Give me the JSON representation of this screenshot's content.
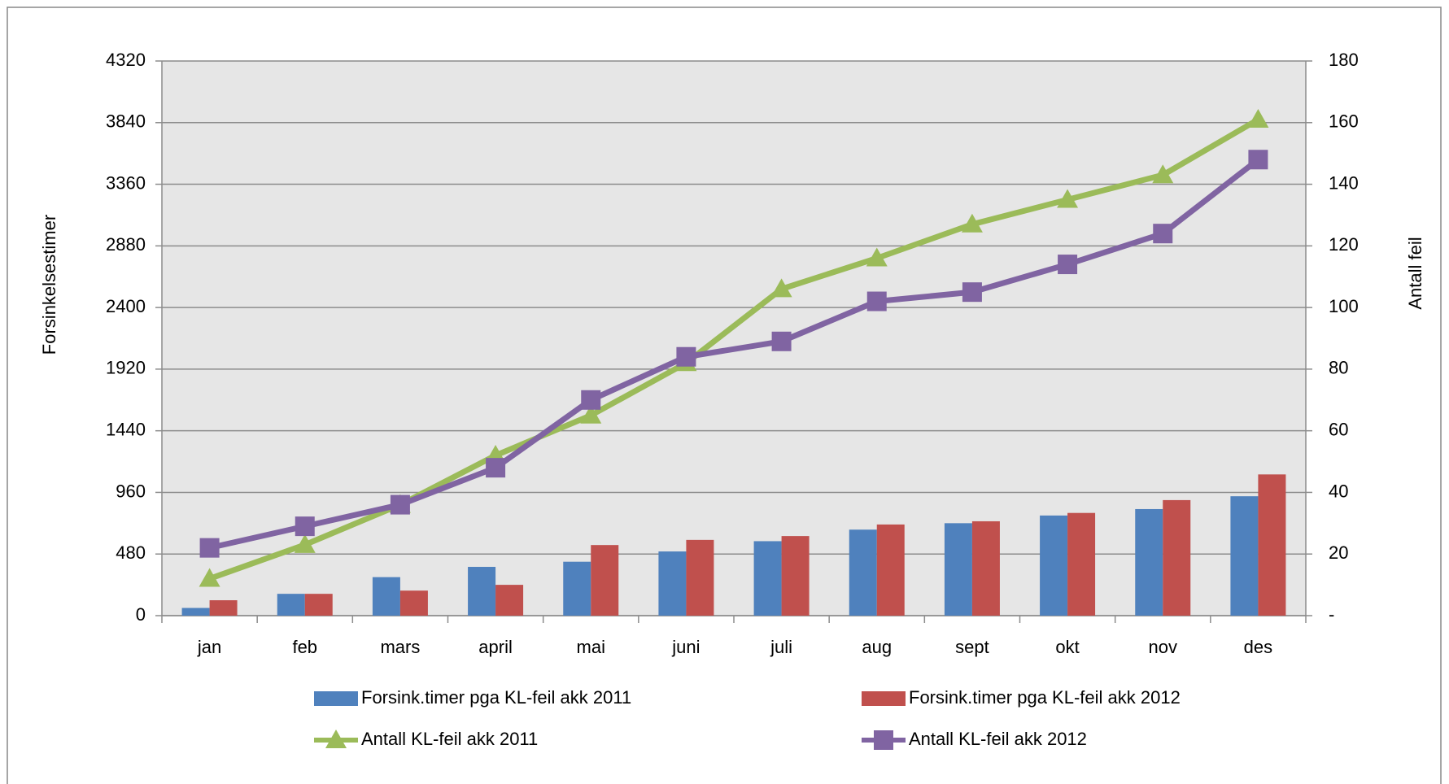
{
  "chart_data": {
    "type": "bar",
    "y_axis_label": "Forsinkelsestimer",
    "y2_axis_label": "Antall feil",
    "categories": [
      "jan",
      "feb",
      "mars",
      "april",
      "mai",
      "juni",
      "juli",
      "aug",
      "sept",
      "okt",
      "nov",
      "des"
    ],
    "series": [
      {
        "name": "Forsink.timer pga KL-feil akk 2011",
        "type": "bar",
        "color": "#4f81bd",
        "values": [
          60,
          170,
          300,
          380,
          420,
          500,
          580,
          670,
          720,
          780,
          830,
          930
        ]
      },
      {
        "name": "Forsink.timer pga KL-feil akk 2012",
        "type": "bar",
        "color": "#c0504d",
        "values": [
          120,
          170,
          195,
          240,
          550,
          590,
          620,
          710,
          735,
          800,
          900,
          1100
        ]
      },
      {
        "name": "Antall KL-feil akk 2011",
        "type": "line",
        "marker": "triangle",
        "axis": "y2",
        "color": "#9bbb59",
        "values": [
          12,
          23,
          36,
          52,
          65,
          82,
          106,
          116,
          127,
          135,
          143,
          161
        ]
      },
      {
        "name": "Antall KL-feil akk 2012",
        "type": "line",
        "marker": "square",
        "axis": "y2",
        "color": "#8064a2",
        "values": [
          22,
          29,
          36,
          48,
          70,
          84,
          89,
          102,
          105,
          114,
          124,
          148
        ]
      }
    ],
    "ylim": [
      0,
      4320
    ],
    "yticks": [
      0,
      480,
      960,
      1440,
      1920,
      2400,
      2880,
      3360,
      3840,
      4320
    ],
    "y2lim": [
      0,
      180
    ],
    "y2ticks": [
      {
        "value": 0,
        "label": "-"
      },
      20,
      40,
      60,
      80,
      100,
      120,
      140,
      160,
      180
    ],
    "grid": true,
    "legend": "bottom"
  }
}
